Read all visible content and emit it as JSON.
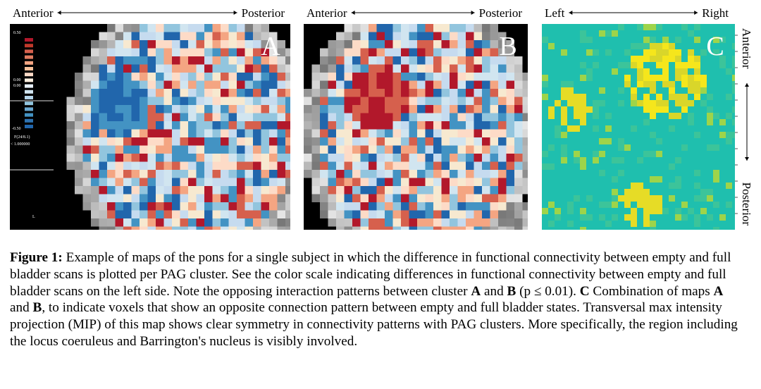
{
  "panels": [
    {
      "label": "A",
      "left": "Anterior",
      "right": "Posterior"
    },
    {
      "label": "B",
      "left": "Anterior",
      "right": "Posterior"
    },
    {
      "label": "C",
      "left": "Left",
      "right": "Right",
      "side_top": "Anterior",
      "side_bottom": "Posterior"
    }
  ],
  "color_scale": {
    "labels": [
      "0.50",
      "0.00",
      "0.00",
      "-0.50",
      "F(24/8.1)",
      "< 1.000000",
      "L"
    ]
  },
  "caption": [
    {
      "text": "Figure 1:",
      "bold": true
    },
    {
      "text": " Example of maps of the pons for a single subject in which the difference in functional connectivity between empty and full bladder scans is plotted per  PAG cluster. See the color scale indicating differences in functional connectivity between empty and full bladder scans on the left side. Note the opposing interaction patterns between cluster "
    },
    {
      "text": "A",
      "bold": true
    },
    {
      "text": " and "
    },
    {
      "text": "B",
      "bold": true
    },
    {
      "text": " (p ≤ 0.01). "
    },
    {
      "text": "C",
      "bold": true
    },
    {
      "text": " Combination of maps "
    },
    {
      "text": "A",
      "bold": true
    },
    {
      "text": " and "
    },
    {
      "text": "B",
      "bold": true
    },
    {
      "text": ", to indicate voxels that show an opposite connection pattern between empty and full bladder states. Transversal max intensity projection (MIP) of this map shows clear symmetry in connectivity patterns with PAG clusters. More specifically, the region including the locus coeruleus and Barrington's nucleus is visibly involved."
    }
  ]
}
